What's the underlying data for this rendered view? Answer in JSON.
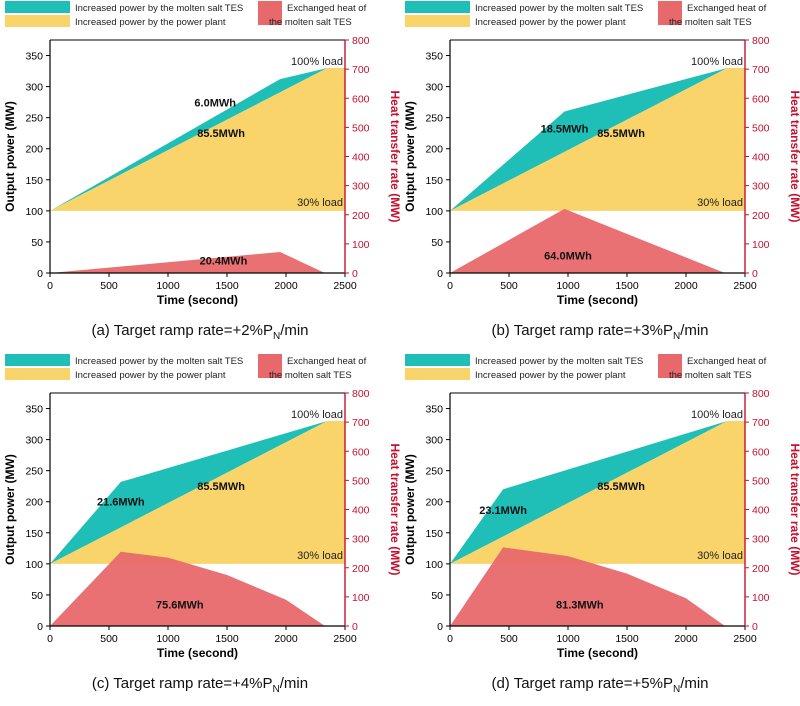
{
  "legend": {
    "tes_power": "Increased power by the molten salt TES",
    "plant_power": "Increased power by the power plant",
    "exchanged_heat_line1": "Exchanged heat of",
    "exchanged_heat_line2": "the molten salt TES"
  },
  "colors": {
    "tes_area": "#1fbfb8",
    "plant_area": "#f9d46a",
    "heat_area": "#e8696c",
    "heat_axis": "#c8102e",
    "axis": "#000000"
  },
  "axes": {
    "xlabel": "Time (second)",
    "ylabel_left": "Output power (MW)",
    "ylabel_right": "Heat transfer rate (MW)",
    "xlim": [
      0,
      2500
    ],
    "ylim_left": [
      0,
      375
    ],
    "ylim_right": [
      0,
      800
    ],
    "xticks": [
      0,
      500,
      1000,
      1500,
      2000,
      2500
    ],
    "yticks_left": [
      0,
      50,
      100,
      150,
      200,
      250,
      300,
      350
    ],
    "yticks_right": [
      0,
      100,
      200,
      300,
      400,
      500,
      600,
      700,
      800
    ]
  },
  "reference_lines": {
    "full_load_label": "100% load",
    "low_load_label": "30% load",
    "full_load_mw": 330,
    "low_load_mw": 100
  },
  "captions": [
    {
      "prefix": "(a) Target ramp rate=+2%P",
      "sub": "N",
      "suffix": "/min"
    },
    {
      "prefix": "(b) Target ramp rate=+3%P",
      "sub": "N",
      "suffix": "/min"
    },
    {
      "prefix": "(c) Target ramp rate=+4%P",
      "sub": "N",
      "suffix": "/min"
    },
    {
      "prefix": "(d) Target ramp rate=+5%P",
      "sub": "N",
      "suffix": "/min"
    }
  ],
  "chart_data": [
    {
      "type": "area",
      "panel": "a",
      "total_power": {
        "x": [
          0,
          1950,
          2350,
          2500
        ],
        "y": [
          100,
          312,
          330,
          330
        ]
      },
      "plant_power": {
        "x": [
          0,
          2350,
          2500
        ],
        "y": [
          100,
          330,
          330
        ]
      },
      "heat_transfer": {
        "x": [
          0,
          1950,
          2330
        ],
        "y": [
          0,
          72,
          0
        ]
      },
      "annotations": {
        "tes_energy": "6.0MWh",
        "plant_energy": "85.5MWh",
        "heat_energy": "20.4MWh"
      }
    },
    {
      "type": "area",
      "panel": "b",
      "total_power": {
        "x": [
          0,
          970,
          2350,
          2500
        ],
        "y": [
          100,
          260,
          330,
          330
        ]
      },
      "plant_power": {
        "x": [
          0,
          2350,
          2500
        ],
        "y": [
          100,
          330,
          330
        ]
      },
      "heat_transfer": {
        "x": [
          0,
          970,
          2330
        ],
        "y": [
          0,
          220,
          0
        ]
      },
      "annotations": {
        "tes_energy": "18.5MWh",
        "plant_energy": "85.5MWh",
        "heat_energy": "64.0MWh"
      }
    },
    {
      "type": "area",
      "panel": "c",
      "total_power": {
        "x": [
          0,
          600,
          2350,
          2500
        ],
        "y": [
          100,
          232,
          330,
          330
        ]
      },
      "plant_power": {
        "x": [
          0,
          2350,
          2500
        ],
        "y": [
          100,
          330,
          330
        ]
      },
      "heat_transfer": {
        "x": [
          0,
          600,
          1000,
          1500,
          2000,
          2330
        ],
        "y": [
          0,
          255,
          235,
          175,
          90,
          0
        ]
      },
      "annotations": {
        "tes_energy": "21.6MWh",
        "plant_energy": "85.5MWh",
        "heat_energy": "75.6MWh"
      }
    },
    {
      "type": "area",
      "panel": "d",
      "total_power": {
        "x": [
          0,
          450,
          2350,
          2500
        ],
        "y": [
          100,
          220,
          330,
          330
        ]
      },
      "plant_power": {
        "x": [
          0,
          2350,
          2500
        ],
        "y": [
          100,
          330,
          330
        ]
      },
      "heat_transfer": {
        "x": [
          0,
          450,
          1000,
          1500,
          2000,
          2330
        ],
        "y": [
          0,
          270,
          240,
          180,
          95,
          0
        ]
      },
      "annotations": {
        "tes_energy": "23.1MWh",
        "plant_energy": "85.5MWh",
        "heat_energy": "81.3MWh"
      }
    }
  ]
}
